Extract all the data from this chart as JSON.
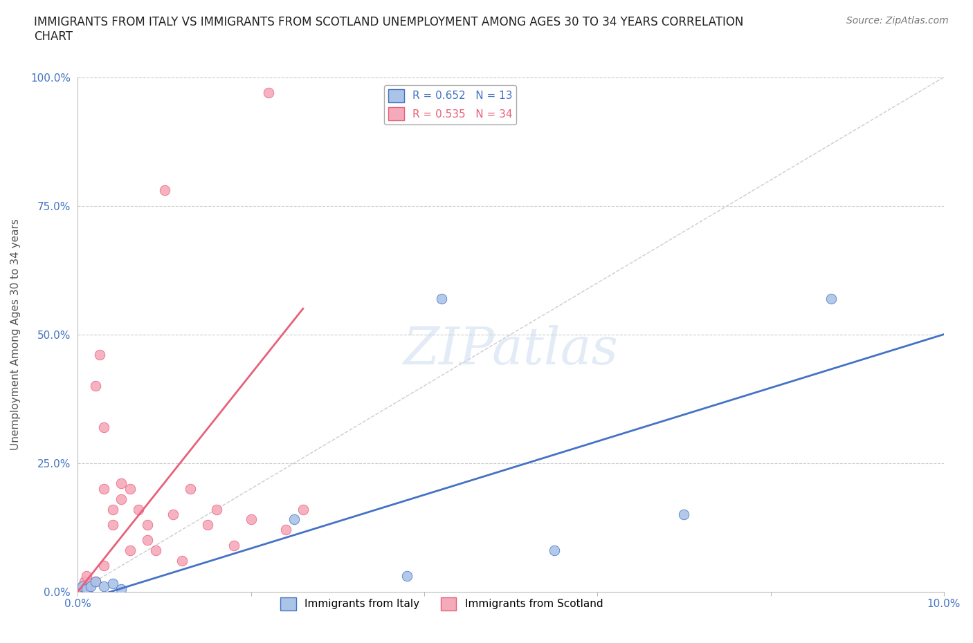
{
  "title": "IMMIGRANTS FROM ITALY VS IMMIGRANTS FROM SCOTLAND UNEMPLOYMENT AMONG AGES 30 TO 34 YEARS CORRELATION\nCHART",
  "source_text": "Source: ZipAtlas.com",
  "ylabel": "Unemployment Among Ages 30 to 34 years",
  "xlim": [
    0.0,
    0.1
  ],
  "ylim": [
    0.0,
    1.0
  ],
  "xticks": [
    0.0,
    0.02,
    0.04,
    0.06,
    0.08,
    0.1
  ],
  "xticklabels": [
    "0.0%",
    "",
    "",
    "",
    "",
    "10.0%"
  ],
  "yticks": [
    0.0,
    0.25,
    0.5,
    0.75,
    1.0
  ],
  "yticklabels": [
    "0.0%",
    "25.0%",
    "50.0%",
    "75.0%",
    "100.0%"
  ],
  "italy_x": [
    0.0005,
    0.001,
    0.0015,
    0.002,
    0.003,
    0.004,
    0.005,
    0.025,
    0.038,
    0.042,
    0.055,
    0.07,
    0.087
  ],
  "italy_y": [
    0.01,
    0.005,
    0.01,
    0.02,
    0.01,
    0.015,
    0.005,
    0.14,
    0.03,
    0.57,
    0.08,
    0.15,
    0.57
  ],
  "scotland_x": [
    0.0003,
    0.0005,
    0.0008,
    0.001,
    0.001,
    0.0012,
    0.0015,
    0.002,
    0.002,
    0.0025,
    0.003,
    0.003,
    0.003,
    0.004,
    0.004,
    0.005,
    0.005,
    0.006,
    0.006,
    0.007,
    0.008,
    0.008,
    0.009,
    0.01,
    0.011,
    0.012,
    0.013,
    0.015,
    0.016,
    0.018,
    0.02,
    0.022,
    0.024,
    0.026
  ],
  "scotland_y": [
    0.005,
    0.01,
    0.02,
    0.01,
    0.03,
    0.005,
    0.015,
    0.4,
    0.02,
    0.46,
    0.2,
    0.32,
    0.05,
    0.13,
    0.16,
    0.18,
    0.21,
    0.08,
    0.2,
    0.16,
    0.1,
    0.13,
    0.08,
    0.78,
    0.15,
    0.06,
    0.2,
    0.13,
    0.16,
    0.09,
    0.14,
    0.97,
    0.12,
    0.16
  ],
  "italy_color": "#aac4e8",
  "scotland_color": "#f5aabb",
  "italy_line_color": "#4472c4",
  "scotland_line_color": "#e8607a",
  "italy_R": 0.652,
  "italy_N": 13,
  "scotland_R": 0.535,
  "scotland_N": 34,
  "italy_trend_x": [
    0.0,
    0.1
  ],
  "italy_trend_y": [
    -0.02,
    0.5
  ],
  "scotland_trend_x": [
    0.0,
    0.026
  ],
  "scotland_trend_y": [
    0.0,
    0.55
  ],
  "diag_line_x": [
    0.0,
    0.1
  ],
  "diag_line_y": [
    0.0,
    1.0
  ],
  "watermark": "ZIPatlas",
  "background_color": "#ffffff",
  "grid_color": "#cccccc",
  "axis_tick_color": "#4472c4",
  "ylabel_color": "#555555",
  "title_color": "#222222",
  "legend_italy_label": "Immigrants from Italy",
  "legend_scotland_label": "Immigrants from Scotland"
}
